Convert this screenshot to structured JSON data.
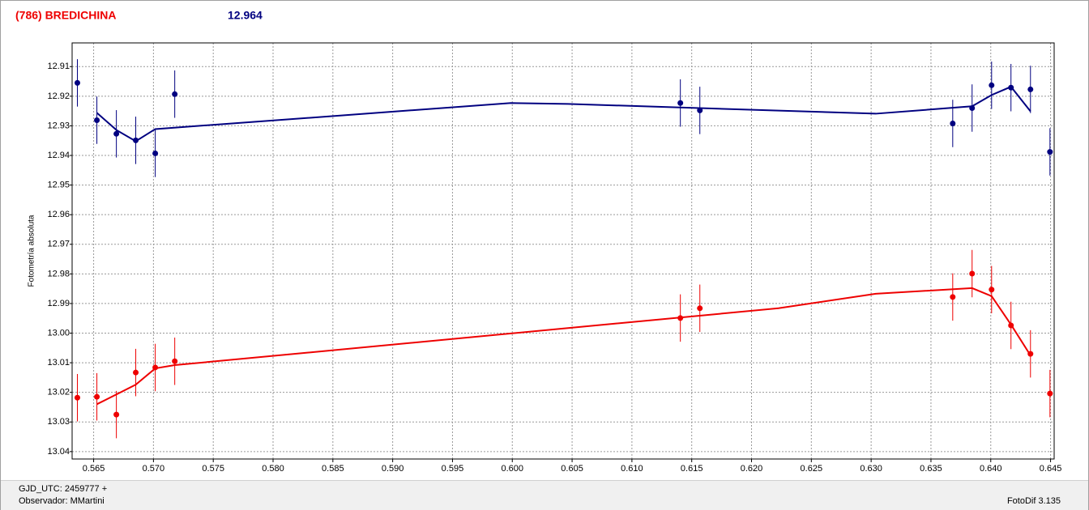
{
  "header": {
    "title": "(786) BREDICHINA",
    "value": "12.964"
  },
  "footer": {
    "time_base": "GJD_UTC: 2459777 +",
    "observer": "Observador: MMartini",
    "software": "FotoDif 3.135"
  },
  "chart_data": {
    "type": "scatter",
    "ylabel": "Fotometría absoluta",
    "xlim": [
      0.5632,
      0.6453
    ],
    "ylim": [
      13.0425,
      12.902
    ],
    "xticks": [
      0.565,
      {
        "value": 0.57,
        "label": "0.570"
      },
      0.575,
      {
        "value": 0.58,
        "label": "0.580"
      },
      0.585,
      {
        "value": 0.59,
        "label": "0.590"
      },
      0.595,
      {
        "value": 0.6,
        "label": "0.600"
      },
      0.605,
      {
        "value": 0.61,
        "label": "0.610"
      },
      0.615,
      {
        "value": 0.62,
        "label": "0.620"
      },
      0.625,
      {
        "value": 0.63,
        "label": "0.630"
      },
      0.635,
      {
        "value": 0.64,
        "label": "0.640"
      },
      0.645
    ],
    "yticks": [
      12.91,
      12.92,
      12.93,
      12.94,
      12.95,
      12.96,
      12.97,
      12.98,
      12.99,
      {
        "value": 13.0,
        "label": "13.00"
      },
      13.01,
      13.02,
      13.03,
      13.04
    ],
    "grid": true,
    "series": [
      {
        "color": "#000080",
        "x": [
          0.56364,
          0.56527,
          0.5669,
          0.56852,
          0.57015,
          0.57178,
          0.61405,
          0.61568,
          0.63682,
          0.63844,
          0.64007,
          0.64169,
          0.64332,
          0.64495
        ],
        "values": [
          12.9155,
          12.9281,
          12.9327,
          12.9349,
          12.9393,
          12.9193,
          12.9223,
          12.9248,
          12.9292,
          12.924,
          12.9163,
          12.9171,
          12.9177,
          12.9388
        ],
        "errors": [
          0.008,
          0.008,
          0.008,
          0.008,
          0.008,
          0.008,
          0.008,
          0.008,
          0.008,
          0.008,
          0.008,
          0.008,
          0.008,
          0.008
        ]
      },
      {
        "color": "#ee0000",
        "x": [
          0.56364,
          0.56527,
          0.5669,
          0.56852,
          0.57015,
          0.57178,
          0.61405,
          0.61568,
          0.63682,
          0.63844,
          0.64007,
          0.64169,
          0.64332,
          0.64495
        ],
        "values": [
          13.0218,
          13.0215,
          13.0275,
          13.0133,
          13.0116,
          13.0095,
          12.9949,
          12.9916,
          12.9878,
          12.9799,
          12.9853,
          12.9974,
          13.007,
          13.0204
        ],
        "errors": [
          0.008,
          0.008,
          0.008,
          0.008,
          0.008,
          0.008,
          0.008,
          0.008,
          0.008,
          0.008,
          0.008,
          0.008,
          0.008,
          0.008
        ]
      }
    ],
    "fit_lines": [
      {
        "color": "#000080",
        "x": [
          0.56527,
          0.5669,
          0.56852,
          0.57015,
          0.59989,
          0.60463,
          0.63038,
          0.63844,
          0.64007,
          0.64169,
          0.64332
        ],
        "values": [
          12.9256,
          12.9314,
          12.9352,
          12.9311,
          12.9223,
          12.9226,
          12.9259,
          12.9234,
          12.9196,
          12.9168,
          12.9251
        ]
      },
      {
        "color": "#ee0000",
        "x": [
          0.56527,
          0.5669,
          0.56852,
          0.57015,
          0.57178,
          0.62225,
          0.63038,
          0.63844,
          0.64007,
          0.64169,
          0.64332
        ],
        "values": [
          13.024,
          13.0207,
          13.0174,
          13.0119,
          13.0108,
          12.9916,
          12.9867,
          12.9848,
          12.9875,
          12.9971,
          13.0075
        ]
      }
    ]
  }
}
